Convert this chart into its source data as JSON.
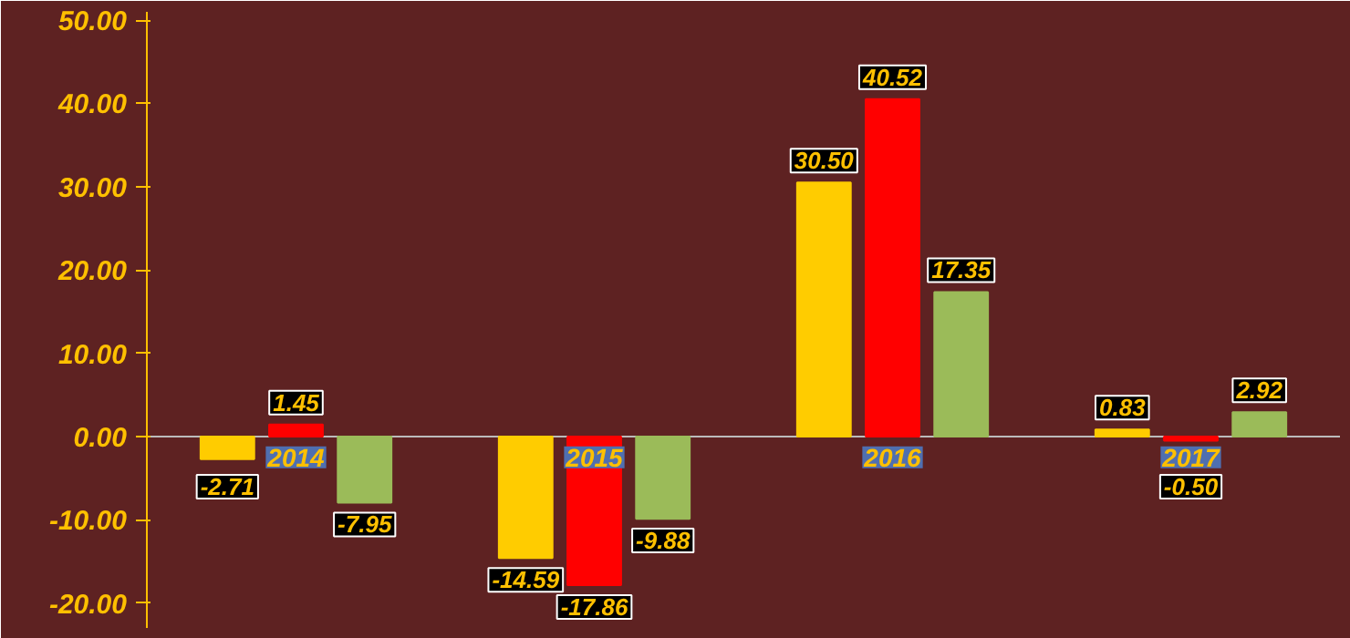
{
  "chart_data": {
    "type": "bar",
    "categories": [
      "2014",
      "2015",
      "2016",
      "2017"
    ],
    "series": [
      {
        "color": "#ffcc00",
        "values": [
          -2.71,
          -14.59,
          30.5,
          0.83
        ]
      },
      {
        "color": "#ff0000",
        "values": [
          1.45,
          -17.86,
          40.52,
          -0.5
        ]
      },
      {
        "color": "#9bbb59",
        "values": [
          -7.95,
          -9.88,
          17.35,
          2.92
        ]
      }
    ],
    "value_labels": [
      [
        "-2.71",
        "-14.59",
        "30.50",
        "0.83"
      ],
      [
        "1.45",
        "-17.86",
        "40.52",
        "-0.50"
      ],
      [
        "-7.95",
        "-9.88",
        "17.35",
        "2.92"
      ]
    ],
    "ylim": [
      -23,
      51
    ],
    "yticks": [
      {
        "value": -20,
        "label": "-20.00"
      },
      {
        "value": -10,
        "label": "-10.00"
      },
      {
        "value": 0,
        "label": "0.00"
      },
      {
        "value": 10,
        "label": "10.00"
      },
      {
        "value": 20,
        "label": "20.00"
      },
      {
        "value": 30,
        "label": "30.00"
      },
      {
        "value": 40,
        "label": "40.00"
      },
      {
        "value": 50,
        "label": "50.00"
      }
    ],
    "grid": false
  }
}
